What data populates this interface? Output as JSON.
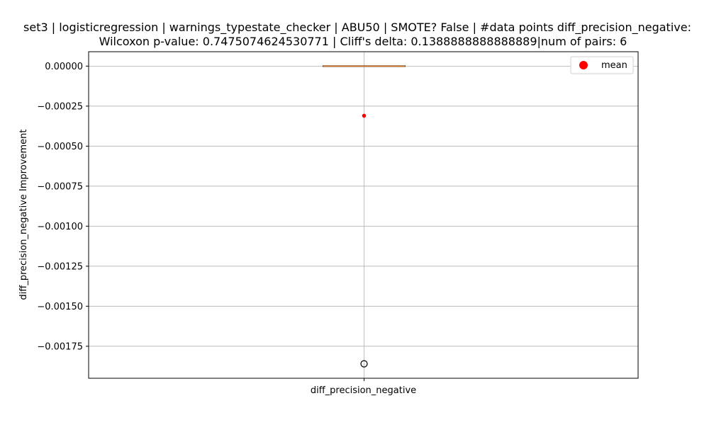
{
  "chart_data": {
    "type": "box",
    "title_line1": "set3 | logisticregression | warnings_typestate_checker | ABU50 | SMOTE? False | #data points diff_precision_negative:",
    "title_line2": "Wilcoxon p-value: 0.7475074624530771 | Cliff's delta: 0.1388888888888889|num of pairs: 6",
    "xlabel": "",
    "ylabel": "diff_precision_negative Improvement",
    "categories": [
      "diff_precision_negative"
    ],
    "ylim": [
      -0.00195,
      9e-05
    ],
    "yticks": [
      0.0,
      -0.00025,
      -0.0005,
      -0.00075,
      -0.001,
      -0.00125,
      -0.0015,
      -0.00175
    ],
    "ytick_labels": [
      "0.00000",
      "−0.00025",
      "−0.00050",
      "−0.00075",
      "−0.00100",
      "−0.00125",
      "−0.00150",
      "−0.00175"
    ],
    "box": {
      "q1": 0.0,
      "median": 0.0,
      "q3": 0.0,
      "whisker_low": 0.0,
      "whisker_high": 0.0,
      "mean": -0.00031,
      "outliers": [
        -0.00186
      ]
    },
    "grid": true,
    "legend": {
      "position": "top-right",
      "entries": [
        {
          "label": "mean",
          "color": "#ff0000"
        }
      ]
    },
    "colors": {
      "median": "#e07b2a",
      "mean": "#ff0000",
      "grid": "#b0b0b0",
      "box": "#000000"
    }
  }
}
